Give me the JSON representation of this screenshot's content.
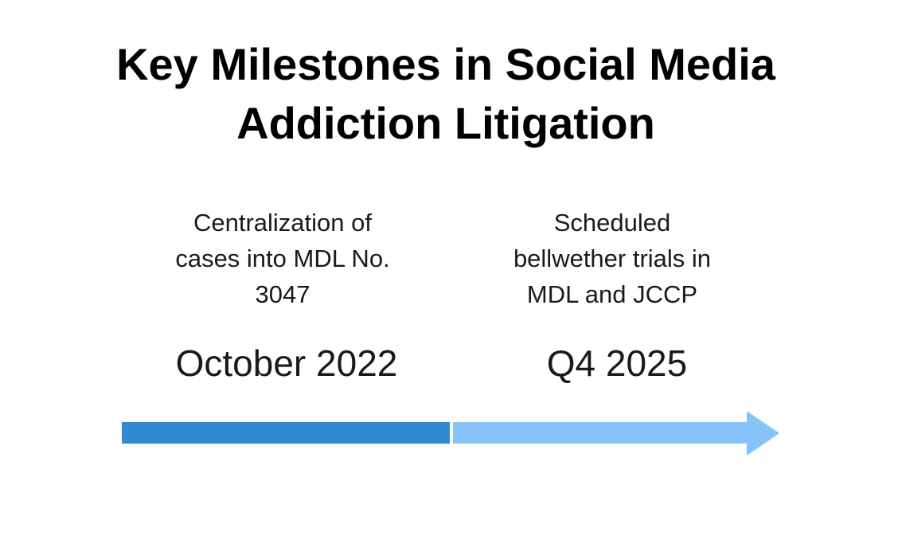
{
  "title": {
    "line1": "Key Milestones in Social Media",
    "line2": "Addiction Litigation"
  },
  "milestones": [
    {
      "description": [
        "Centralization of",
        "cases into MDL No.",
        "3047"
      ],
      "date": "October 2022",
      "color": "#3189d1"
    },
    {
      "description": [
        "Scheduled",
        "bellwether trials in",
        "MDL and JCCP"
      ],
      "date": "Q4 2025",
      "color": "#86c3f9"
    }
  ]
}
